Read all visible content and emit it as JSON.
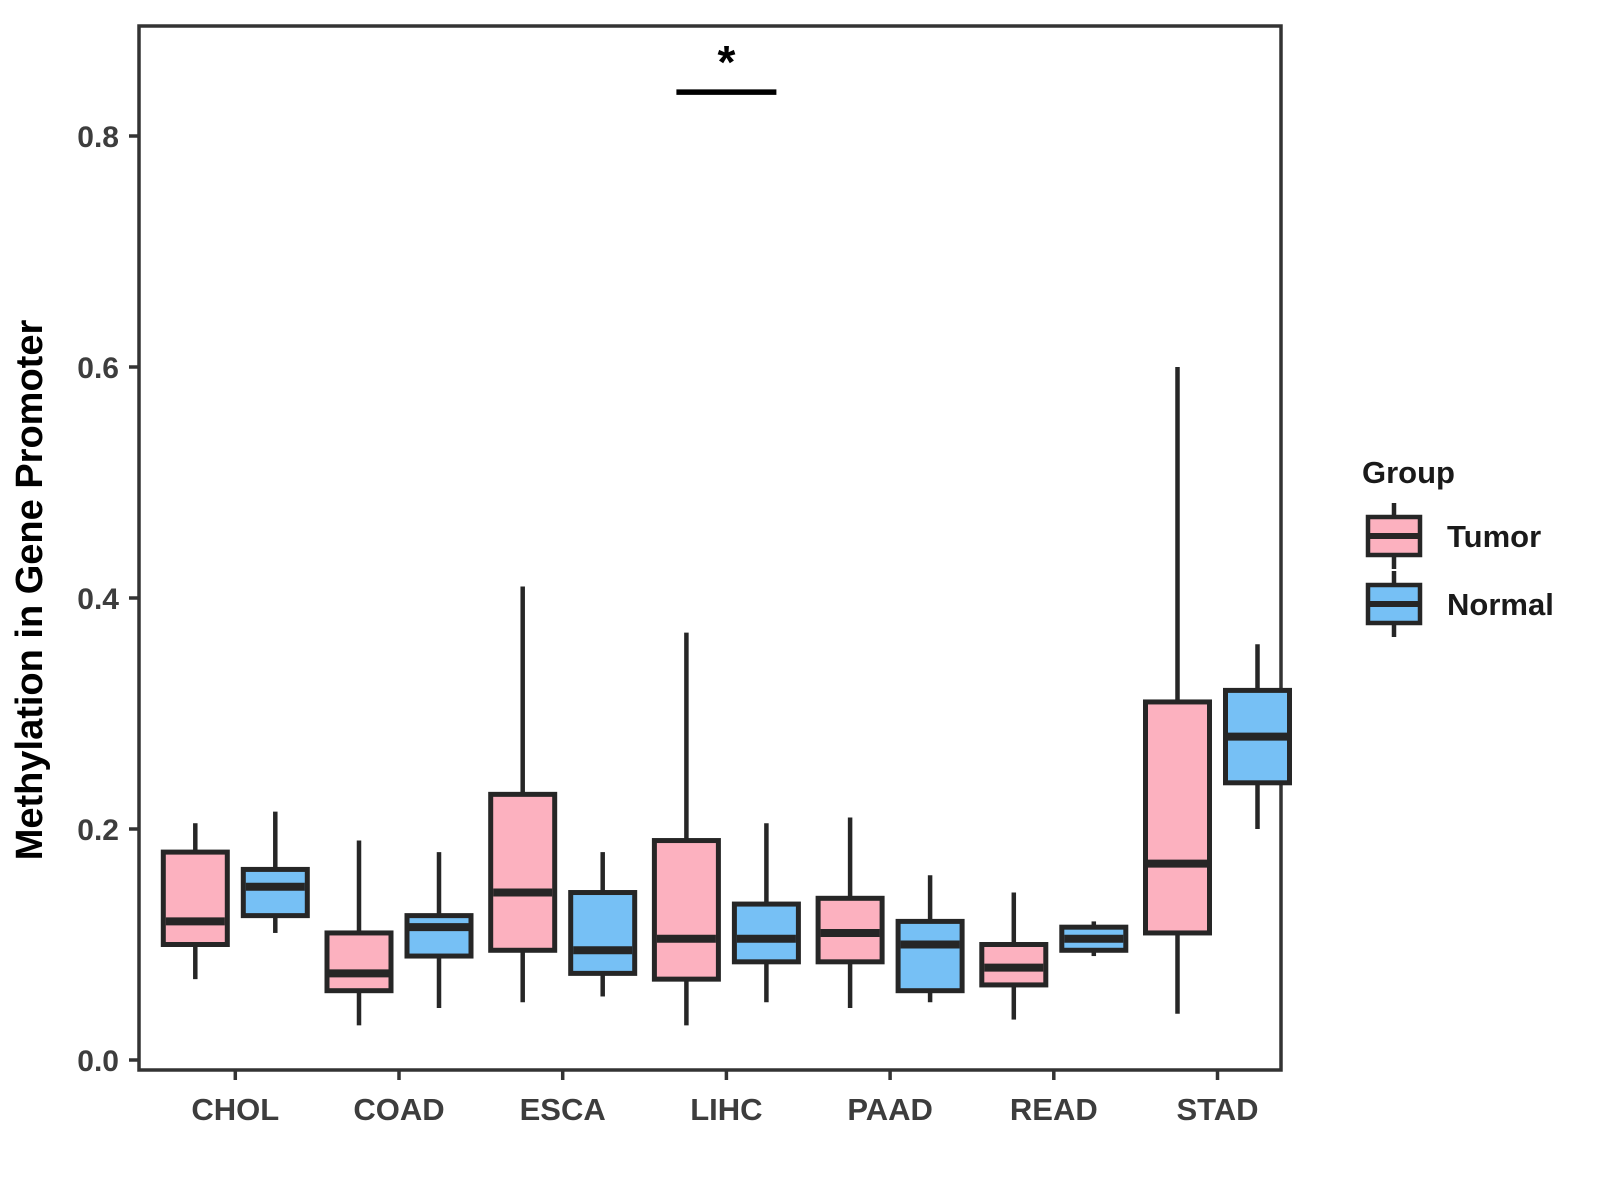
{
  "chart_data": {
    "type": "boxplot",
    "title": "",
    "xlabel": "",
    "ylabel": "Methylation in Gene Promoter",
    "categories": [
      "CHOL",
      "COAD",
      "ESCA",
      "LIHC",
      "PAAD",
      "READ",
      "STAD"
    ],
    "ylim": [
      0.0,
      0.89
    ],
    "yticks": [
      {
        "label": "0.0",
        "value": 0.0
      },
      {
        "label": "0.2",
        "value": 0.2
      },
      {
        "label": "0.4",
        "value": 0.4
      },
      {
        "label": "0.6",
        "value": 0.6
      },
      {
        "label": "0.8",
        "value": 0.8
      }
    ],
    "grid": "off",
    "legend": {
      "title": "Group",
      "position": "right",
      "entries": [
        {
          "label": "Tumor",
          "color": "#FCB1BF"
        },
        {
          "label": "Normal",
          "color": "#76C0F5"
        }
      ]
    },
    "series": [
      {
        "name": "Tumor",
        "color": "#FCB1BF",
        "boxes": [
          {
            "category": "CHOL",
            "min": 0.07,
            "q1": 0.1,
            "median": 0.12,
            "q3": 0.18,
            "max": 0.205
          },
          {
            "category": "COAD",
            "min": 0.03,
            "q1": 0.06,
            "median": 0.075,
            "q3": 0.11,
            "max": 0.19
          },
          {
            "category": "ESCA",
            "min": 0.05,
            "q1": 0.095,
            "median": 0.145,
            "q3": 0.23,
            "max": 0.41
          },
          {
            "category": "LIHC",
            "min": 0.03,
            "q1": 0.07,
            "median": 0.105,
            "q3": 0.19,
            "max": 0.37
          },
          {
            "category": "PAAD",
            "min": 0.045,
            "q1": 0.085,
            "median": 0.11,
            "q3": 0.14,
            "max": 0.21
          },
          {
            "category": "READ",
            "min": 0.035,
            "q1": 0.065,
            "median": 0.08,
            "q3": 0.1,
            "max": 0.145
          },
          {
            "category": "STAD",
            "min": 0.04,
            "q1": 0.11,
            "median": 0.17,
            "q3": 0.31,
            "max": 0.6
          }
        ]
      },
      {
        "name": "Normal",
        "color": "#76C0F5",
        "boxes": [
          {
            "category": "CHOL",
            "min": 0.11,
            "q1": 0.125,
            "median": 0.15,
            "q3": 0.165,
            "max": 0.215
          },
          {
            "category": "COAD",
            "min": 0.045,
            "q1": 0.09,
            "median": 0.115,
            "q3": 0.125,
            "max": 0.18
          },
          {
            "category": "ESCA",
            "min": 0.055,
            "q1": 0.075,
            "median": 0.095,
            "q3": 0.145,
            "max": 0.18
          },
          {
            "category": "LIHC",
            "min": 0.05,
            "q1": 0.085,
            "median": 0.105,
            "q3": 0.135,
            "max": 0.205
          },
          {
            "category": "PAAD",
            "min": 0.05,
            "q1": 0.06,
            "median": 0.1,
            "q3": 0.12,
            "max": 0.16
          },
          {
            "category": "READ",
            "min": 0.09,
            "q1": 0.095,
            "median": 0.105,
            "q3": 0.115,
            "max": 0.12
          },
          {
            "category": "STAD",
            "min": 0.2,
            "q1": 0.24,
            "median": 0.28,
            "q3": 0.32,
            "max": 0.36
          }
        ]
      }
    ],
    "annotation": {
      "text": "*",
      "target_category": "LIHC",
      "line_value": 0.838,
      "style": "significance-bracket"
    },
    "style_colors": {
      "box_stroke": "#262626",
      "axis_line": "#333333",
      "panel_background": "#ffffff"
    }
  }
}
